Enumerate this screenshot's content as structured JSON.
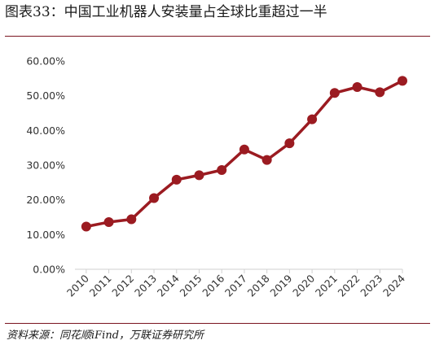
{
  "figure_title": "图表33：中国工业机器人安装量占全球比重超过一半",
  "source_note": "资料来源：同花顺iFind，万联证券研究所",
  "colors": {
    "line": "#9b1b21",
    "axis": "#d0d0d0",
    "rule": "#7a1420"
  },
  "chart_data": {
    "type": "line",
    "title": "图表33：中国工业机器人安装量占全球比重超过一半",
    "x": [
      "2010",
      "2011",
      "2012",
      "2013",
      "2014",
      "2015",
      "2016",
      "2017",
      "2018",
      "2019",
      "2020",
      "2021",
      "2022",
      "2023",
      "2024"
    ],
    "series": [
      {
        "values": [
          12.3,
          13.6,
          14.4,
          20.5,
          25.8,
          27.1,
          28.6,
          34.5,
          31.5,
          36.3,
          43.2,
          50.8,
          52.5,
          51.0,
          54.3
        ]
      }
    ],
    "ylim": [
      0,
      60
    ],
    "yticks": [
      "0.00%",
      "10.00%",
      "20.00%",
      "30.00%",
      "40.00%",
      "50.00%",
      "60.00%"
    ],
    "grid": false,
    "legend": "none"
  }
}
